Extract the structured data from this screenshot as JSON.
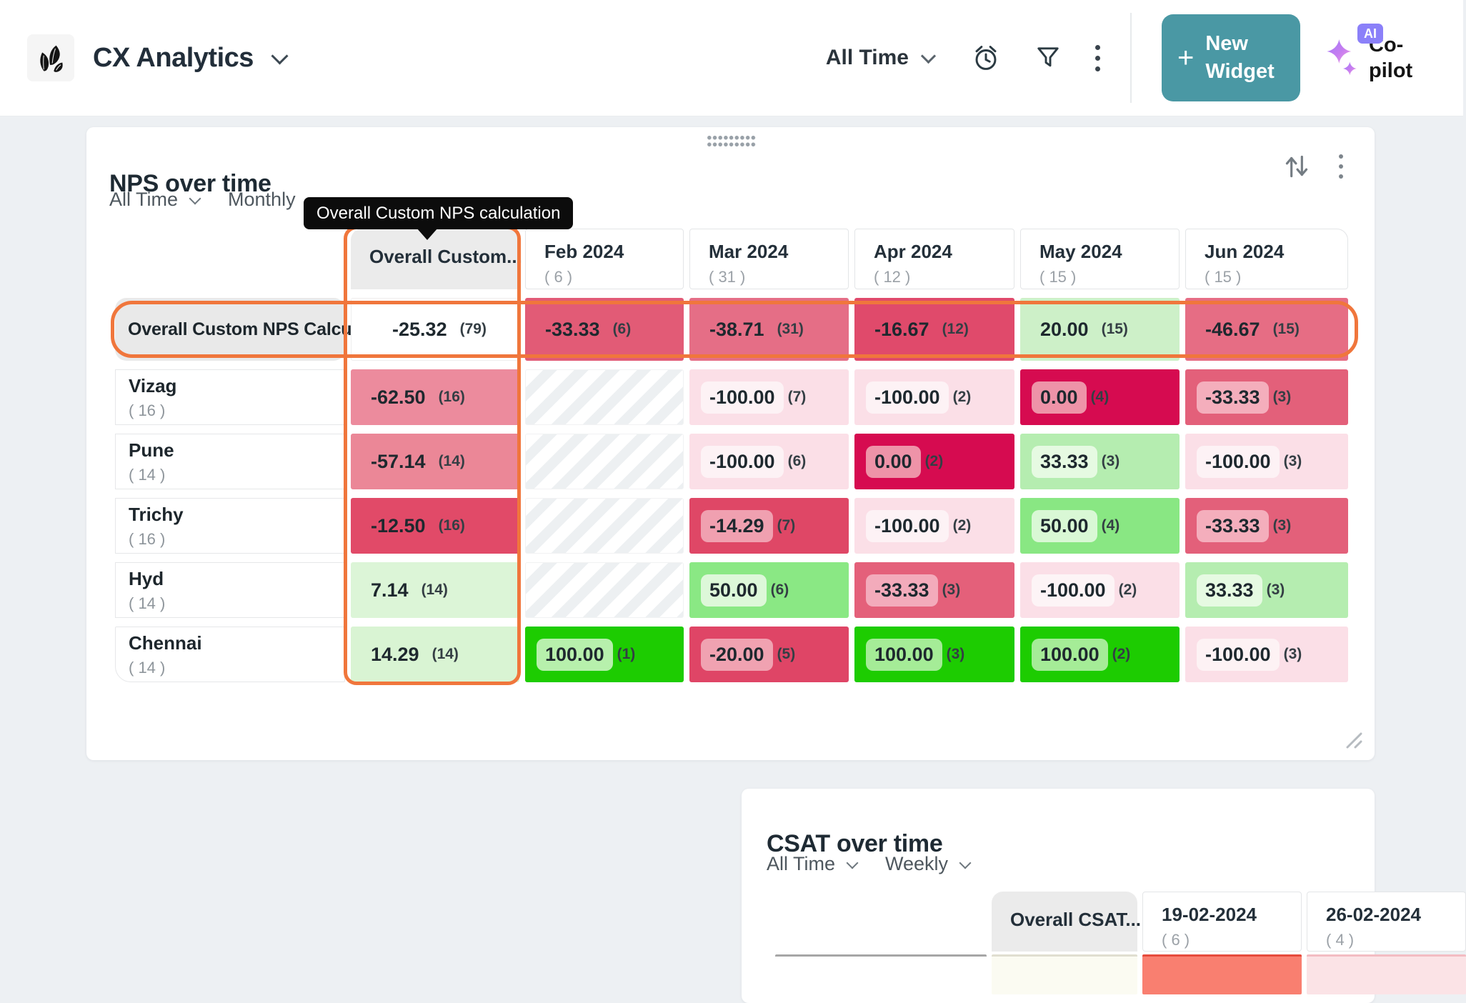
{
  "header": {
    "app_title": "CX Analytics",
    "time_filter_label": "All Time",
    "new_widget_plus": "+",
    "new_widget_label": "New Widget",
    "copilot_label": "Co-pilot",
    "ai_badge_label": "AI",
    "colors": {
      "new_widget_button": "#4a98a4",
      "ai_badge": "#8b80f9"
    },
    "icons": {
      "logo": "leaves",
      "dropdown": "chevron-down",
      "alarm": "alarm-clock",
      "filter": "funnel",
      "more": "kebab-vertical",
      "copilot": "sparkles"
    }
  },
  "nps_widget": {
    "title": "NPS over time",
    "time_filter": "All Time",
    "granularity_filter": "Monthly",
    "tooltip_text": "Overall Custom NPS calculation",
    "highlight_color": "#f0763c",
    "icons": {
      "sort": "arrows-up-down",
      "more": "kebab-vertical",
      "resize": "diagonal-grip",
      "drag": "dot-grid"
    },
    "chart_data": {
      "type": "heatmap",
      "columns": [
        {
          "label": "Overall Custom...",
          "count": ""
        },
        {
          "label": "Feb 2024",
          "count": "( 6 )"
        },
        {
          "label": "Mar 2024",
          "count": "( 31 )"
        },
        {
          "label": "Apr 2024",
          "count": "( 12 )"
        },
        {
          "label": "May 2024",
          "count": "( 15 )"
        },
        {
          "label": "Jun 2024",
          "count": "( 15 )"
        }
      ],
      "rows": [
        {
          "label": "Overall Custom NPS Calcu...",
          "count": "",
          "highlighted": true,
          "cells": [
            {
              "value": "-25.32",
              "count": "(79)",
              "bg": "#ffffff",
              "border": "#eeeeee"
            },
            {
              "value": "-33.33",
              "count": "(6)",
              "bg": "#e25b76"
            },
            {
              "value": "-38.71",
              "count": "(31)",
              "bg": "#e56e86"
            },
            {
              "value": "-16.67",
              "count": "(12)",
              "bg": "#e04a6b"
            },
            {
              "value": "20.00",
              "count": "(15)",
              "bg": "#cdf0c8"
            },
            {
              "value": "-46.67",
              "count": "(15)",
              "bg": "#e66d84"
            }
          ]
        },
        {
          "label": "Vizag",
          "count": "( 16 )",
          "cells": [
            {
              "value": "-62.50",
              "count": "(16)",
              "bg": "#ec8b9d"
            },
            {
              "hatch": true
            },
            {
              "value": "-100.00",
              "count": "(7)",
              "bg": "#fbdfe7",
              "pill": "#fdf2f5"
            },
            {
              "value": "-100.00",
              "count": "(2)",
              "bg": "#fbdfe7",
              "pill": "#fdf2f5"
            },
            {
              "value": "0.00",
              "count": "(4)",
              "bg": "#d60b50",
              "pill": "#ee93a8"
            },
            {
              "value": "-33.33",
              "count": "(3)",
              "bg": "#e3607a",
              "pill": "#f4aebc"
            }
          ]
        },
        {
          "label": "Pune",
          "count": "( 14 )",
          "cells": [
            {
              "value": "-57.14",
              "count": "(14)",
              "bg": "#eb8797"
            },
            {
              "hatch": true
            },
            {
              "value": "-100.00",
              "count": "(6)",
              "bg": "#fbdfe7",
              "pill": "#fdf2f5"
            },
            {
              "value": "0.00",
              "count": "(2)",
              "bg": "#d60b50",
              "pill": "#ee93a8"
            },
            {
              "value": "33.33",
              "count": "(3)",
              "bg": "#b5edb0",
              "pill": "#e6fae2"
            },
            {
              "value": "-100.00",
              "count": "(3)",
              "bg": "#fbdfe7",
              "pill": "#fdf2f5"
            }
          ]
        },
        {
          "label": "Trichy",
          "count": "( 16 )",
          "cells": [
            {
              "value": "-12.50",
              "count": "(16)",
              "bg": "#e14a68"
            },
            {
              "hatch": true
            },
            {
              "value": "-14.29",
              "count": "(7)",
              "bg": "#df4766",
              "pill": "#f0a0b0"
            },
            {
              "value": "-100.00",
              "count": "(2)",
              "bg": "#fbdfe7",
              "pill": "#fdf2f5"
            },
            {
              "value": "50.00",
              "count": "(4)",
              "bg": "#89e783",
              "pill": "#d9f8d5"
            },
            {
              "value": "-33.33",
              "count": "(3)",
              "bg": "#e3607a",
              "pill": "#f4aebc"
            }
          ]
        },
        {
          "label": "Hyd",
          "count": "( 14 )",
          "cells": [
            {
              "value": "7.14",
              "count": "(14)",
              "bg": "#dcf5d7"
            },
            {
              "hatch": true
            },
            {
              "value": "50.00",
              "count": "(6)",
              "bg": "#8ae884",
              "pill": "#ddf8d9"
            },
            {
              "value": "-33.33",
              "count": "(3)",
              "bg": "#e4607a",
              "pill": "#f3abbb"
            },
            {
              "value": "-100.00",
              "count": "(2)",
              "bg": "#fbdfe7",
              "pill": "#fdf4f6"
            },
            {
              "value": "33.33",
              "count": "(3)",
              "bg": "#b5edb0",
              "pill": "#e6fae2"
            }
          ]
        },
        {
          "label": "Chennai",
          "count": "( 14 )",
          "cells": [
            {
              "value": "14.29",
              "count": "(14)",
              "bg": "#d9f4d3"
            },
            {
              "value": "100.00",
              "count": "(1)",
              "bg": "#1dcc01",
              "pill": "#b7f0ac"
            },
            {
              "value": "-20.00",
              "count": "(5)",
              "bg": "#df4566",
              "pill": "#f0a2b1"
            },
            {
              "value": "100.00",
              "count": "(3)",
              "bg": "#1dcc01",
              "pill": "#a5ec97"
            },
            {
              "value": "100.00",
              "count": "(2)",
              "bg": "#1dcc01",
              "pill": "#a5ec97"
            },
            {
              "value": "-100.00",
              "count": "(3)",
              "bg": "#fbdfe7",
              "pill": "#fdf2f4"
            }
          ]
        }
      ]
    }
  },
  "csat_widget": {
    "title": "CSAT over time",
    "time_filter": "All Time",
    "granularity_filter": "Weekly",
    "columns": [
      {
        "label": "Overall CSAT...",
        "count": ""
      },
      {
        "label": "19-02-2024",
        "count": "( 6 )"
      },
      {
        "label": "26-02-2024",
        "count": "( 4 )"
      }
    ]
  }
}
